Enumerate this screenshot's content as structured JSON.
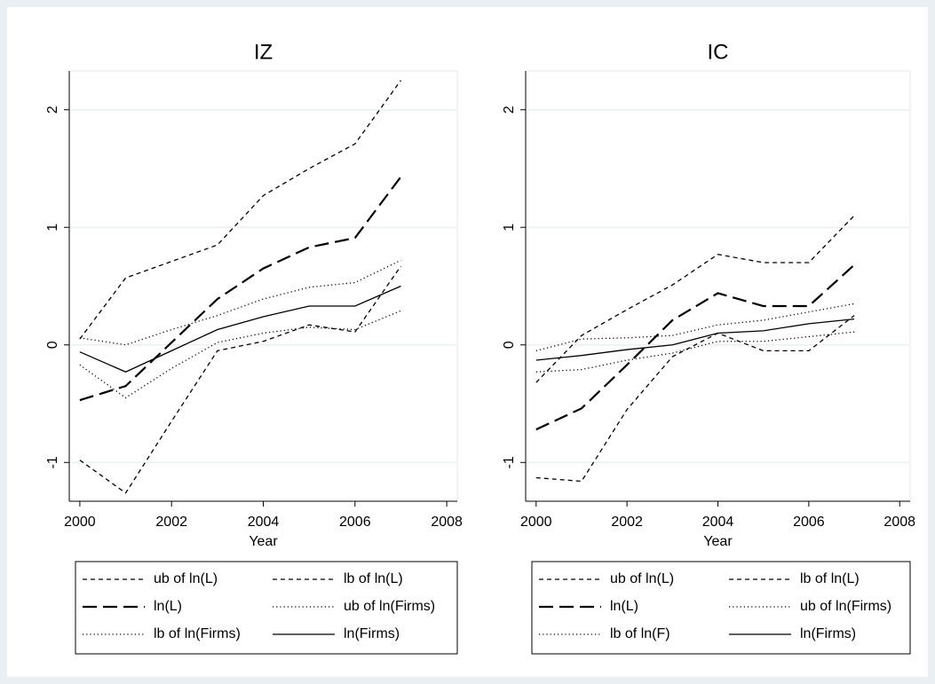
{
  "chart_data": [
    {
      "type": "line",
      "title": "IZ",
      "xlabel": "Year",
      "x": [
        2000,
        2001,
        2002,
        2003,
        2004,
        2005,
        2006,
        2007
      ],
      "xlim": [
        1999.77,
        2008.23
      ],
      "xticks": [
        2000,
        2002,
        2004,
        2006,
        2008
      ],
      "ylim": [
        -1.33,
        2.33
      ],
      "yticks": [
        -1,
        0,
        1,
        2
      ],
      "grid": true,
      "series": [
        {
          "name": "ub of ln(L)",
          "color": "#000000",
          "dash": "short",
          "values": [
            0.05,
            0.57,
            0.71,
            0.85,
            1.27,
            1.5,
            1.71,
            2.25
          ]
        },
        {
          "name": "lb of ln(L)",
          "color": "#000000",
          "dash": "short",
          "values": [
            -0.98,
            -1.26,
            -0.65,
            -0.05,
            0.03,
            0.17,
            0.11,
            0.67
          ]
        },
        {
          "name": "ln(L)",
          "color": "#000000",
          "dash": "long",
          "values": [
            -0.47,
            -0.35,
            0.02,
            0.39,
            0.65,
            0.83,
            0.91,
            1.43
          ]
        },
        {
          "name": "ub of ln(Firms)",
          "color": "#000000",
          "dash": "dot",
          "values": [
            0.06,
            0.0,
            0.13,
            0.25,
            0.39,
            0.49,
            0.53,
            0.72
          ]
        },
        {
          "name": "lb of ln(Firms)",
          "color": "#000000",
          "dash": "dot",
          "values": [
            -0.17,
            -0.45,
            -0.2,
            0.02,
            0.1,
            0.15,
            0.13,
            0.29
          ]
        },
        {
          "name": "ln(Firms)",
          "color": "#000000",
          "dash": "solid",
          "values": [
            -0.06,
            -0.23,
            -0.05,
            0.13,
            0.24,
            0.33,
            0.33,
            0.5
          ]
        }
      ]
    },
    {
      "type": "line",
      "title": "IC",
      "xlabel": "Year",
      "x": [
        2000,
        2001,
        2002,
        2003,
        2004,
        2005,
        2006,
        2007
      ],
      "xlim": [
        1999.77,
        2008.23
      ],
      "xticks": [
        2000,
        2002,
        2004,
        2006,
        2008
      ],
      "ylim": [
        -1.33,
        2.33
      ],
      "yticks": [
        -1,
        0,
        1,
        2
      ],
      "grid": true,
      "series": [
        {
          "name": "ub of ln(L)",
          "color": "#000000",
          "dash": "short",
          "values": [
            -0.32,
            0.08,
            0.3,
            0.51,
            0.77,
            0.7,
            0.7,
            1.1
          ]
        },
        {
          "name": "lb of ln(L)",
          "color": "#000000",
          "dash": "short",
          "values": [
            -1.13,
            -1.16,
            -0.55,
            -0.1,
            0.1,
            -0.05,
            -0.05,
            0.25
          ]
        },
        {
          "name": "ln(L)",
          "color": "#000000",
          "dash": "long",
          "values": [
            -0.72,
            -0.54,
            -0.17,
            0.21,
            0.44,
            0.33,
            0.33,
            0.68
          ]
        },
        {
          "name": "ub of ln(Firms)",
          "color": "#000000",
          "dash": "dot",
          "values": [
            -0.05,
            0.05,
            0.06,
            0.08,
            0.17,
            0.21,
            0.28,
            0.35
          ]
        },
        {
          "name": "lb of ln(F)",
          "color": "#000000",
          "dash": "dot",
          "values": [
            -0.23,
            -0.21,
            -0.13,
            -0.07,
            0.03,
            0.03,
            0.07,
            0.11
          ]
        },
        {
          "name": "ln(Firms)",
          "color": "#000000",
          "dash": "solid",
          "values": [
            -0.13,
            -0.09,
            -0.04,
            0.0,
            0.1,
            0.12,
            0.18,
            0.22
          ]
        }
      ]
    }
  ]
}
